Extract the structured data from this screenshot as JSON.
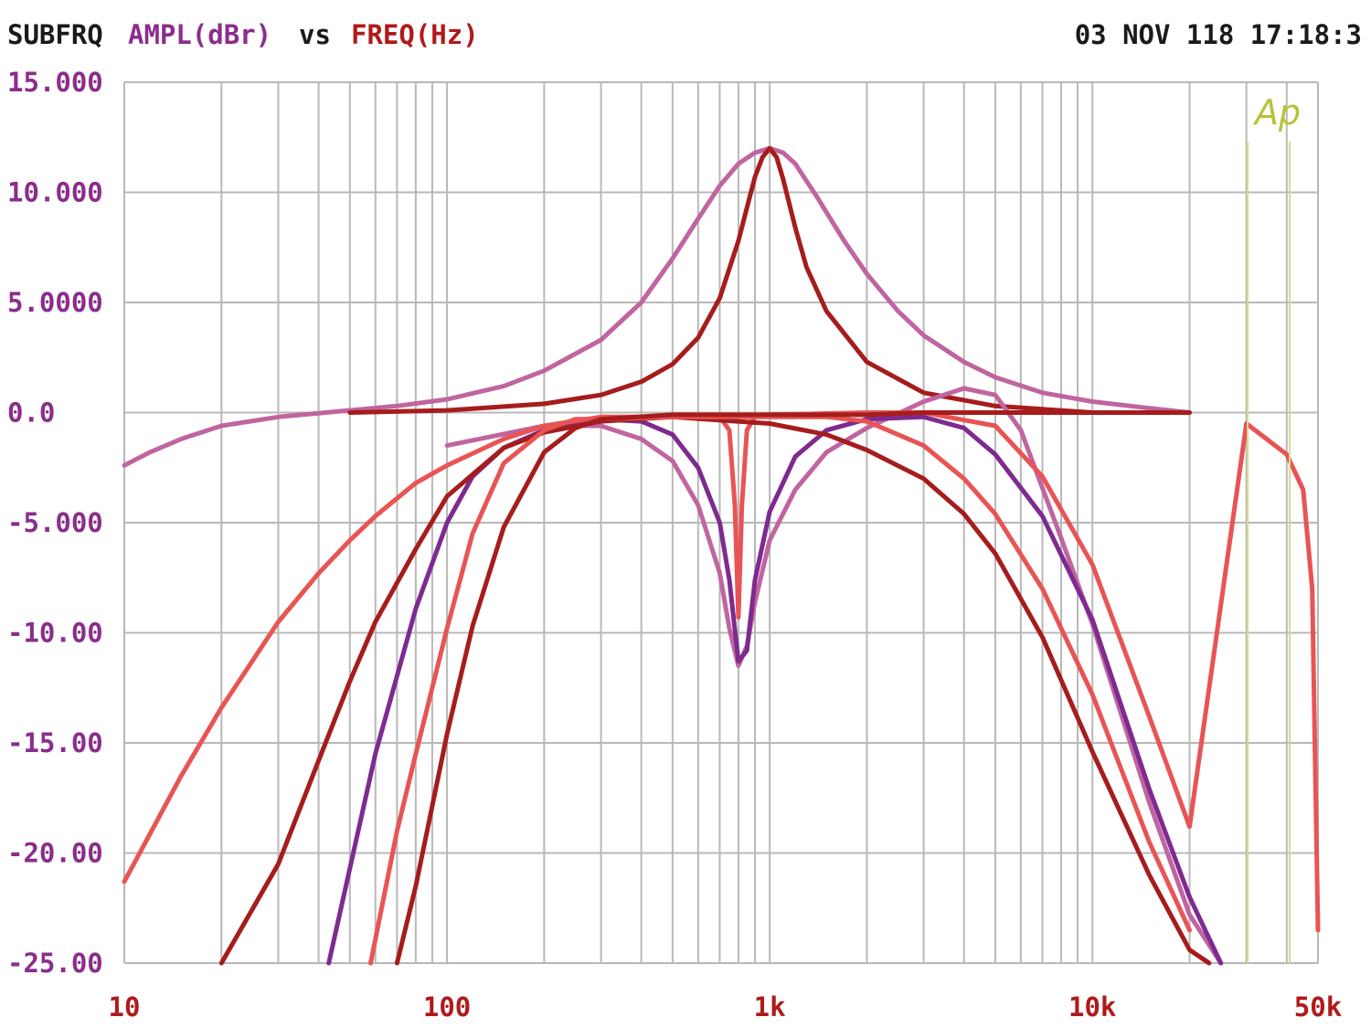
{
  "header": {
    "name": "SUBFRQ",
    "y_quantity": "AMPL(dBr)",
    "vs": "vs",
    "x_quantity": "FREQ(Hz)",
    "timestamp": "03 NOV 118 17:18:3",
    "logo": "Ap"
  },
  "colors": {
    "background": "#ffffff",
    "grid": "#b8b8b8",
    "header_text": "#1a1a1a",
    "y_label": "#8b2d8b",
    "x_label": "#b01a1a",
    "logo": "#b8c23a"
  },
  "chart_data": {
    "type": "line",
    "title": "",
    "xlabel": "FREQ(Hz)",
    "ylabel": "AMPL(dBr)",
    "x_scale": "log",
    "xlim": [
      10,
      50000
    ],
    "ylim": [
      -25,
      15
    ],
    "grid": true,
    "legend": "none",
    "x_tick_labels": [
      {
        "value": 10,
        "label": "10"
      },
      {
        "value": 100,
        "label": "100"
      },
      {
        "value": 1000,
        "label": "1k"
      },
      {
        "value": 10000,
        "label": "10k"
      },
      {
        "value": 50000,
        "label": "50k"
      }
    ],
    "y_tick_labels": [
      {
        "value": 15,
        "label": "15.000"
      },
      {
        "value": 10,
        "label": "10.000"
      },
      {
        "value": 5,
        "label": "5.0000"
      },
      {
        "value": 0,
        "label": "0.0"
      },
      {
        "value": -5,
        "label": "-5.000"
      },
      {
        "value": -10,
        "label": "-10.00"
      },
      {
        "value": -15,
        "label": "-15.00"
      },
      {
        "value": -20,
        "label": "-20.00"
      },
      {
        "value": -25,
        "label": "-25.00"
      }
    ],
    "series": [
      {
        "color": "#c0659f",
        "x": [
          10,
          12,
          15,
          20,
          30,
          50,
          70,
          100,
          150,
          200,
          300,
          400,
          500,
          600,
          700,
          800,
          900,
          1000,
          1100,
          1200,
          1400,
          1700,
          2000,
          2500,
          3000,
          4000,
          5000,
          7000,
          10000,
          15000,
          20000
        ],
        "y": [
          -2.4,
          -1.8,
          -1.2,
          -0.6,
          -0.2,
          0.1,
          0.3,
          0.6,
          1.2,
          1.9,
          3.3,
          5.0,
          7.0,
          8.8,
          10.3,
          11.3,
          11.8,
          12.0,
          11.8,
          11.3,
          9.8,
          7.8,
          6.3,
          4.6,
          3.5,
          2.3,
          1.6,
          0.9,
          0.5,
          0.2,
          0.0
        ]
      },
      {
        "color": "#a61c1c",
        "x": [
          50,
          100,
          200,
          300,
          400,
          500,
          600,
          700,
          800,
          850,
          900,
          950,
          1000,
          1050,
          1100,
          1200,
          1300,
          1500,
          2000,
          3000,
          5000,
          10000
        ],
        "y": [
          0.0,
          0.1,
          0.4,
          0.8,
          1.4,
          2.2,
          3.4,
          5.2,
          7.8,
          9.3,
          10.7,
          11.6,
          12.0,
          11.6,
          10.6,
          8.4,
          6.6,
          4.6,
          2.3,
          0.9,
          0.3,
          0.0
        ]
      },
      {
        "color": "#c0659f",
        "x": [
          100,
          200,
          300,
          400,
          500,
          600,
          700,
          750,
          800,
          850,
          900,
          1000,
          1200,
          1500,
          2000,
          3000,
          4000,
          5000,
          6000,
          8000,
          10000,
          15000,
          20000,
          25000
        ],
        "y": [
          -1.5,
          -0.6,
          -0.6,
          -1.2,
          -2.2,
          -4.2,
          -7.3,
          -9.8,
          -11.5,
          -10.6,
          -8.6,
          -5.8,
          -3.5,
          -1.8,
          -0.7,
          0.5,
          1.1,
          0.8,
          -0.8,
          -5.7,
          -9.6,
          -17.7,
          -22.8,
          -25.0
        ]
      },
      {
        "color": "#7e2a90",
        "x": [
          43,
          60,
          80,
          100,
          120,
          150,
          200,
          300,
          400,
          500,
          600,
          700,
          750,
          800,
          850,
          900,
          1000,
          1200,
          1500,
          2000,
          3000,
          4000,
          5000,
          7000,
          10000,
          15000,
          20000,
          25000
        ],
        "y": [
          -25.0,
          -15.5,
          -8.9,
          -5.0,
          -2.9,
          -1.6,
          -0.8,
          -0.3,
          -0.4,
          -1.0,
          -2.5,
          -5.0,
          -7.6,
          -11.3,
          -10.8,
          -7.6,
          -4.5,
          -2.0,
          -0.8,
          -0.3,
          -0.2,
          -0.7,
          -1.9,
          -4.7,
          -9.4,
          -17.1,
          -22.0,
          -25.0
        ]
      },
      {
        "color": "#e85454",
        "x": [
          10,
          15,
          20,
          30,
          40,
          50,
          60,
          80,
          100,
          150,
          200,
          300,
          500,
          700,
          750,
          780,
          800,
          820,
          850,
          900,
          1000,
          2000,
          3000,
          5000,
          7000,
          10000,
          15000,
          20000,
          30000,
          40000,
          45000,
          48000,
          50000
        ],
        "y": [
          -21.3,
          -16.5,
          -13.4,
          -9.5,
          -7.3,
          -5.8,
          -4.7,
          -3.2,
          -2.4,
          -1.2,
          -0.6,
          -0.2,
          -0.2,
          -0.2,
          -0.8,
          -4.2,
          -9.3,
          -4.2,
          -0.8,
          -0.2,
          -0.1,
          0.0,
          0.0,
          -0.6,
          -2.9,
          -6.9,
          -13.8,
          -18.8,
          -0.5,
          -1.9,
          -3.5,
          -8.0,
          -23.5
        ]
      },
      {
        "color": "#a61c1c",
        "x": [
          20,
          30,
          40,
          50,
          60,
          80,
          100,
          150,
          200,
          300,
          500,
          1000,
          1500,
          2000,
          3000,
          4000,
          5000,
          7000,
          10000,
          15000,
          20000,
          23000
        ],
        "y": [
          -25.0,
          -20.5,
          -15.8,
          -12.2,
          -9.5,
          -6.2,
          -3.8,
          -1.6,
          -0.9,
          -0.4,
          -0.2,
          -0.5,
          -1.0,
          -1.7,
          -3.0,
          -4.6,
          -6.4,
          -10.2,
          -15.4,
          -21.0,
          -24.4,
          -25.0
        ]
      },
      {
        "color": "#e85454",
        "x": [
          58,
          70,
          80,
          100,
          120,
          150,
          200,
          250,
          300,
          500,
          1000,
          1500,
          2000,
          3000,
          4000,
          5000,
          7000,
          10000,
          15000,
          20000
        ],
        "y": [
          -25.0,
          -19.0,
          -15.5,
          -9.8,
          -5.5,
          -2.3,
          -0.8,
          -0.3,
          -0.3,
          -0.2,
          -0.2,
          -0.2,
          -0.4,
          -1.5,
          -3.0,
          -4.6,
          -8.0,
          -12.8,
          -19.5,
          -23.5
        ]
      },
      {
        "color": "#a61c1c",
        "x": [
          70,
          80,
          100,
          120,
          150,
          200,
          250,
          300,
          500,
          1000,
          2000,
          3000,
          5000,
          8000,
          10000,
          20000
        ],
        "y": [
          -25.0,
          -21.5,
          -14.6,
          -9.7,
          -5.2,
          -1.8,
          -0.7,
          -0.3,
          -0.1,
          -0.1,
          -0.1,
          0.0,
          0.0,
          0.0,
          0.0,
          0.0
        ]
      }
    ]
  }
}
